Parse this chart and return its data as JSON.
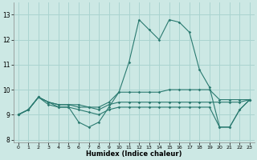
{
  "xlabel": "Humidex (Indice chaleur)",
  "background_color": "#cce8e4",
  "grid_color": "#aad4d0",
  "line_color": "#2a7a70",
  "hours": [
    0,
    1,
    2,
    3,
    4,
    5,
    6,
    7,
    8,
    9,
    10,
    11,
    12,
    13,
    14,
    15,
    16,
    17,
    18,
    19,
    20,
    21,
    22,
    23
  ],
  "line1": [
    9.0,
    9.2,
    9.7,
    9.4,
    9.3,
    9.3,
    8.7,
    8.5,
    8.7,
    9.3,
    9.9,
    11.1,
    12.8,
    12.4,
    12.0,
    12.8,
    12.7,
    12.3,
    10.8,
    10.1,
    8.5,
    8.5,
    9.2,
    9.6
  ],
  "line2": [
    9.0,
    9.2,
    9.7,
    9.5,
    9.4,
    9.4,
    9.4,
    9.3,
    9.3,
    9.5,
    9.9,
    9.9,
    9.9,
    9.9,
    9.9,
    10.0,
    10.0,
    10.0,
    10.0,
    10.0,
    9.6,
    9.6,
    9.6,
    9.6
  ],
  "line3": [
    9.0,
    9.2,
    9.7,
    9.5,
    9.4,
    9.4,
    9.3,
    9.3,
    9.2,
    9.4,
    9.5,
    9.5,
    9.5,
    9.5,
    9.5,
    9.5,
    9.5,
    9.5,
    9.5,
    9.5,
    9.5,
    9.5,
    9.5,
    9.6
  ],
  "line4": [
    9.0,
    9.2,
    9.7,
    9.5,
    9.3,
    9.3,
    9.2,
    9.1,
    9.0,
    9.2,
    9.3,
    9.3,
    9.3,
    9.3,
    9.3,
    9.3,
    9.3,
    9.3,
    9.3,
    9.3,
    8.5,
    8.5,
    9.2,
    9.6
  ],
  "ylim": [
    7.9,
    13.5
  ],
  "yticks": [
    8,
    9,
    10,
    11,
    12,
    13
  ],
  "xlim": [
    -0.5,
    23.5
  ]
}
